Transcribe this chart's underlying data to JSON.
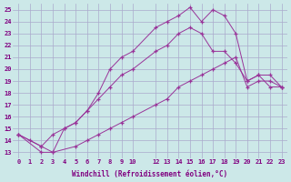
{
  "xlabel": "Windchill (Refroidissement éolien,°C)",
  "bg_color": "#cce8e8",
  "grid_color": "#aaaacc",
  "line_color": "#993399",
  "xlim": [
    -0.5,
    23.5
  ],
  "ylim": [
    12.5,
    25.5
  ],
  "xticks": [
    0,
    1,
    2,
    3,
    4,
    5,
    6,
    7,
    8,
    9,
    10,
    12,
    13,
    14,
    15,
    16,
    17,
    18,
    19,
    20,
    21,
    22,
    23
  ],
  "yticks": [
    13,
    14,
    15,
    16,
    17,
    18,
    19,
    20,
    21,
    22,
    23,
    24,
    25
  ],
  "curve1_x": [
    0,
    1,
    2,
    3,
    4,
    5,
    6,
    7,
    8,
    9,
    10,
    12,
    13,
    14,
    15,
    16,
    17,
    18,
    19,
    20,
    21,
    22,
    23
  ],
  "curve1_y": [
    14.5,
    14.0,
    13.5,
    13.0,
    15.0,
    15.5,
    16.5,
    18.0,
    20.0,
    21.0,
    21.5,
    23.5,
    24.0,
    24.5,
    25.2,
    24.0,
    25.0,
    24.5,
    23.0,
    19.0,
    19.5,
    18.5,
    18.5
  ],
  "curve2_x": [
    0,
    2,
    3,
    4,
    5,
    6,
    7,
    8,
    9,
    10,
    12,
    13,
    14,
    15,
    16,
    17,
    18,
    19,
    20,
    21,
    22,
    23
  ],
  "curve2_y": [
    14.5,
    13.5,
    14.5,
    15.0,
    15.5,
    16.5,
    17.5,
    18.5,
    19.5,
    20.0,
    21.5,
    22.0,
    23.0,
    23.5,
    23.0,
    21.5,
    21.5,
    20.5,
    19.0,
    19.5,
    19.5,
    18.5
  ],
  "curve3_x": [
    0,
    2,
    3,
    5,
    6,
    7,
    8,
    9,
    10,
    12,
    13,
    14,
    15,
    16,
    17,
    18,
    19,
    20,
    21,
    22,
    23
  ],
  "curve3_y": [
    14.5,
    13.0,
    13.0,
    13.5,
    14.0,
    14.5,
    15.0,
    15.5,
    16.0,
    17.0,
    17.5,
    18.5,
    19.0,
    19.5,
    20.0,
    20.5,
    21.0,
    18.5,
    19.0,
    19.0,
    18.5
  ]
}
